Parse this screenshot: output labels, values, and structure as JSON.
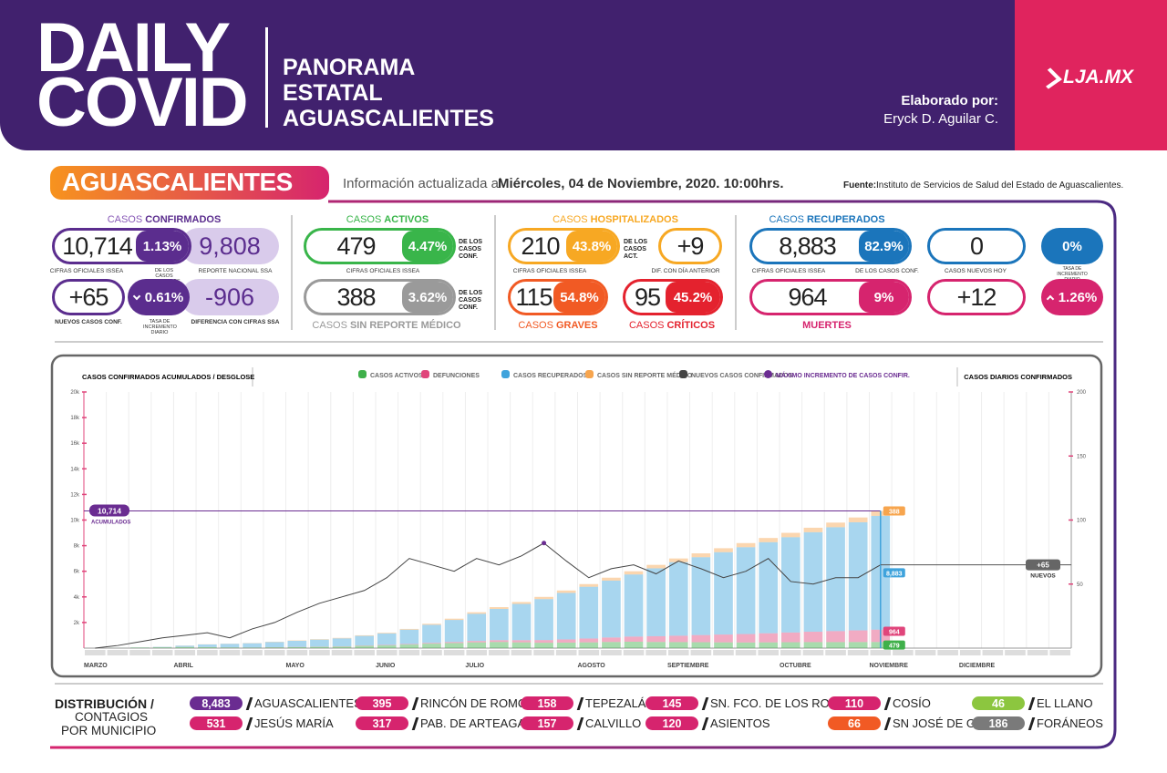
{
  "header": {
    "title": [
      "DAILY",
      "COVID"
    ],
    "subtitle": [
      "PANORAMA",
      "ESTATAL",
      "AGUASCALIENTES"
    ],
    "credit_label": "Elaborado por:",
    "credit_name": "Eryck D. Aguilar C.",
    "brand": "LJA.MX"
  },
  "info": {
    "region": "AGUASCALIENTES",
    "updated_prefix": "Información actualizada al",
    "updated": "Miércoles, 04 de Noviembre, 2020. 10:00hrs.",
    "source_label": "Fuente:",
    "source": "Instituto de Servicios de Salud del Estado de Aguascalientes."
  },
  "confirmados": {
    "heading": [
      "CASOS",
      "CONFIRMADOS"
    ],
    "total": "10,714",
    "pct_nacional": "1.13%",
    "ssa": "9,808",
    "nuevos": "+65",
    "tasa": "0.61%",
    "diferencia": "-906",
    "captions": [
      "CIFRAS OFICIALES ISSEA",
      "DE LOS CASOS NACIONALES",
      "REPORTE NACIONAL SSA",
      "NUEVOS CASOS CONF.",
      "TASA DE INCREMENTO DIARIO",
      "DIFERENCIA CON CIFRAS SSA"
    ]
  },
  "activos": {
    "heading": [
      "CASOS",
      "ACTIVOS"
    ],
    "total": "479",
    "pct": "4.47%",
    "pct_note": "DE LOS CASOS CONF.",
    "caption": "CIFRAS OFICIALES ISSEA",
    "sin_reporte": "388",
    "sin_reporte_pct": "3.62%",
    "sin_reporte_note": "DE LOS CASOS CONF.",
    "sin_reporte_heading": [
      "CASOS",
      "SIN REPORTE MÉDICO"
    ]
  },
  "hospitalizados": {
    "heading": [
      "CASOS",
      "HOSPITALIZADOS"
    ],
    "total": "210",
    "pct": "43.8%",
    "pct_note": "DE LOS CASOS ACT.",
    "caption": "CIFRAS OFICIALES ISSEA",
    "diff": "+9",
    "diff_caption": "DIF. CON DÍA ANTERIOR",
    "graves": "115",
    "graves_pct": "54.8%",
    "graves_heading": [
      "CASOS",
      "GRAVES"
    ],
    "criticos": "95",
    "criticos_pct": "45.2%",
    "criticos_heading": [
      "CASOS",
      "CRÍTICOS"
    ]
  },
  "recuperados": {
    "heading": [
      "CASOS",
      "RECUPERADOS"
    ],
    "total": "8,883",
    "pct": "82.9%",
    "caption": "CIFRAS OFICIALES ISSEA",
    "pct_caption": "DE LOS CASOS CONF.",
    "nuevos": "0",
    "nuevos_caption": "CASOS NUEVOS HOY",
    "tasa": "0%",
    "tasa_caption": "TASA DE INCREMENTO DIARIO",
    "muertes": "964",
    "muertes_pct": "9%",
    "muertes_heading": "MUERTES",
    "muertes_nuevas": "+12",
    "muertes_tasa": "1.26%"
  },
  "chart_data": {
    "type": "stacked_bar",
    "title": "CASOS CONFIRMADOS ACUMULADOS / DESGLOSE",
    "y2_title": "CASOS DIARIOS CONFIRMADOS",
    "categories": [
      "MARZO",
      null,
      null,
      null,
      "ABRIL",
      null,
      null,
      null,
      null,
      "MAYO",
      null,
      null,
      null,
      "JUNIO",
      null,
      null,
      null,
      "JULIO",
      null,
      null,
      null,
      null,
      "AGOSTO",
      null,
      null,
      null,
      "SEPTIEMBRE",
      null,
      null,
      null,
      null,
      "OCTUBRE",
      null,
      null,
      null,
      "NOVIEMBRE",
      null,
      null,
      null,
      "DICIEMBRE",
      null,
      null,
      null,
      null
    ],
    "series": [
      {
        "name": "CASOS ACTIVOS",
        "color": "#3fb04a",
        "values": [
          0,
          8,
          40,
          60,
          90,
          80,
          50,
          40,
          60,
          80,
          100,
          120,
          180,
          220,
          280,
          350,
          400,
          450,
          480,
          450,
          420,
          430,
          450,
          480,
          500,
          480,
          470,
          460,
          450,
          440,
          450,
          460,
          470,
          470,
          475,
          479,
          null,
          null,
          null,
          null,
          null,
          null,
          null,
          null
        ]
      },
      {
        "name": "DEFUNCIONES",
        "color": "#e0457b",
        "values": [
          0,
          0,
          1,
          2,
          4,
          6,
          8,
          10,
          12,
          15,
          18,
          22,
          28,
          35,
          45,
          60,
          80,
          110,
          140,
          170,
          210,
          250,
          300,
          350,
          400,
          450,
          500,
          560,
          610,
          660,
          710,
          760,
          810,
          860,
          910,
          964,
          null,
          null,
          null,
          null,
          null,
          null,
          null,
          null
        ]
      },
      {
        "name": "CASOS RECUPERADOS",
        "color": "#3fa3dc",
        "values": [
          0,
          2,
          7,
          33,
          96,
          199,
          277,
          330,
          403,
          475,
          547,
          618,
          747,
          895,
          1115,
          1410,
          1720,
          2120,
          2440,
          2830,
          3200,
          3630,
          4040,
          4440,
          4850,
          5300,
          5740,
          6080,
          6430,
          6780,
          7110,
          7440,
          7770,
          8110,
          8440,
          8883,
          null,
          null,
          null,
          null,
          null,
          null,
          null,
          null
        ]
      },
      {
        "name": "CASOS SIN REPORTE MÉDICO",
        "color": "#f7a54e",
        "values": [
          0,
          0,
          2,
          5,
          10,
          15,
          15,
          20,
          25,
          30,
          35,
          40,
          45,
          50,
          60,
          80,
          100,
          120,
          140,
          150,
          170,
          190,
          210,
          230,
          250,
          270,
          290,
          300,
          310,
          320,
          330,
          340,
          350,
          360,
          375,
          388,
          null,
          null,
          null,
          null,
          null,
          null,
          null,
          null
        ]
      },
      {
        "name": "NUEVOS CASOS CONFIRMADOS",
        "type": "line",
        "axis": "y2",
        "color": "#444444",
        "values": [
          0,
          2,
          5,
          8,
          10,
          12,
          8,
          15,
          20,
          28,
          35,
          40,
          45,
          55,
          70,
          65,
          60,
          70,
          65,
          72,
          82,
          68,
          55,
          62,
          65,
          58,
          68,
          62,
          55,
          60,
          70,
          52,
          50,
          55,
          55,
          65,
          null,
          null,
          null,
          null,
          null,
          null,
          null,
          null
        ]
      }
    ],
    "ylim": [
      0,
      20000
    ],
    "yticks": [
      {
        "value": 2000,
        "label": "2k"
      },
      {
        "value": 4000,
        "label": "4k"
      },
      {
        "value": 6000,
        "label": "6k"
      },
      {
        "value": 8000,
        "label": "8k"
      },
      {
        "value": 10000,
        "label": "10k"
      },
      {
        "value": 12000,
        "label": "12k"
      },
      {
        "value": 14000,
        "label": "14k"
      },
      {
        "value": 16000,
        "label": "16k"
      },
      {
        "value": 18000,
        "label": "18k"
      },
      {
        "value": 20000,
        "label": "20k"
      }
    ],
    "y2lim": [
      0,
      200
    ],
    "y2ticks": [
      50,
      100,
      150,
      200
    ],
    "annotations": {
      "max_label": "MÁXIMO INCREMENTO DE CASOS CONFIR.",
      "max_color": "#6a2c91",
      "total_caption": "ACUMULADOS",
      "new_caption": "NUEVOS"
    }
  },
  "distribution": {
    "heading": [
      "DISTRIBUCIÓN /",
      "CONTAGIOS",
      "POR MUNICIPIO"
    ],
    "items": [
      {
        "value": "8,483",
        "name": "AGUASCALIENTES",
        "color": "#6a2c91"
      },
      {
        "value": "531",
        "name": "JESÚS MARÍA",
        "color": "#d6246e"
      },
      {
        "value": "395",
        "name": "RINCÓN DE ROMOS",
        "color": "#d6246e"
      },
      {
        "value": "317",
        "name": "PAB. DE ARTEAGA",
        "color": "#d6246e"
      },
      {
        "value": "158",
        "name": "TEPEZALÁ",
        "color": "#d6246e"
      },
      {
        "value": "157",
        "name": "CALVILLO",
        "color": "#d6246e"
      },
      {
        "value": "145",
        "name": "SN. FCO. DE LOS ROMO",
        "color": "#d6246e"
      },
      {
        "value": "120",
        "name": "ASIENTOS",
        "color": "#d6246e"
      },
      {
        "value": "110",
        "name": "COSÍO",
        "color": "#d6246e"
      },
      {
        "value": "66",
        "name": "SN JOSÉ DE G.",
        "color": "#f15a24"
      },
      {
        "value": "46",
        "name": "EL LLANO",
        "color": "#8cc63f"
      },
      {
        "value": "186",
        "name": "FORÁNEOS",
        "color": "#7a7a7a"
      }
    ]
  }
}
